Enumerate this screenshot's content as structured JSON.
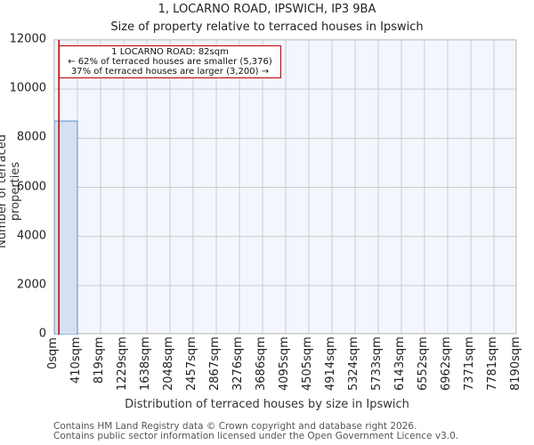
{
  "header": {
    "title": "1, LOCARNO ROAD, IPSWICH, IP3 9BA",
    "subtitle": "Size of property relative to terraced houses in Ipswich"
  },
  "annotation": {
    "line1": "1 LOCARNO ROAD: 82sqm",
    "line2": "← 62% of terraced houses are smaller (5,376)",
    "line3": "37% of terraced houses are larger (3,200) →"
  },
  "footer": {
    "line1": "Contains HM Land Registry data © Crown copyright and database right 2026.",
    "line2": "Contains public sector information licensed under the Open Government Licence v3.0."
  },
  "colors": {
    "bar_fill": "#d6e0f2",
    "bar_edge": "#5b8ed4",
    "marker": "#c00000",
    "plot_bg": "#f3f6fd",
    "grid": "#cccccc"
  },
  "chart_data": {
    "type": "bar",
    "title": "1, LOCARNO ROAD, IPSWICH, IP3 9BA",
    "subtitle": "Size of property relative to terraced houses in Ipswich",
    "xlabel": "Distribution of terraced houses by size in Ipswich",
    "ylabel": "Number of terraced properties",
    "categories": [
      "0sqm",
      "410sqm",
      "819sqm",
      "1229sqm",
      "1638sqm",
      "2048sqm",
      "2457sqm",
      "2867sqm",
      "3276sqm",
      "3686sqm",
      "4095sqm",
      "4505sqm",
      "4914sqm",
      "5324sqm",
      "5733sqm",
      "6143sqm",
      "6552sqm",
      "6962sqm",
      "7371sqm",
      "7781sqm",
      "8190sqm"
    ],
    "bin_edges": [
      0,
      410,
      819,
      1229,
      1638,
      2048,
      2457,
      2867,
      3276,
      3686,
      4095,
      4505,
      4914,
      5324,
      5733,
      6143,
      6552,
      6962,
      7371,
      7781,
      8190
    ],
    "values": [
      8700,
      0,
      0,
      0,
      0,
      0,
      0,
      0,
      0,
      0,
      0,
      0,
      0,
      0,
      0,
      0,
      0,
      0,
      0,
      0
    ],
    "ylim": [
      0,
      12000
    ],
    "yticks": [
      0,
      2000,
      4000,
      6000,
      8000,
      10000,
      12000
    ],
    "grid": true,
    "marker": {
      "x": 82,
      "label": "1 LOCARNO ROAD: 82sqm",
      "smaller_pct": 62,
      "smaller_count": 5376,
      "larger_pct": 37,
      "larger_count": 3200
    },
    "legend": null
  }
}
